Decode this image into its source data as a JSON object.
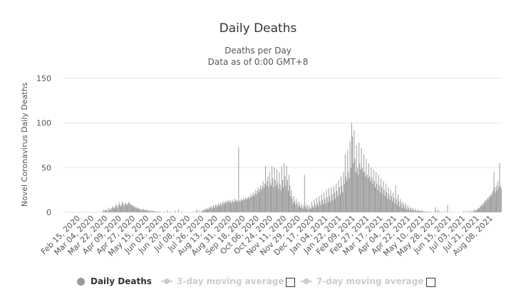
{
  "chart_data": {
    "type": "bar",
    "title": "Daily Deaths",
    "subtitle_lines": [
      "Deaths per Day",
      "Data as of 0:00 GMT+8"
    ],
    "ylabel": "Novel Coronavirus Daily Deaths",
    "xlabel": "",
    "ylim": [
      0,
      150
    ],
    "yticks": [
      0,
      50,
      100,
      150
    ],
    "x_start": "2020-02-15",
    "x_end": "2021-08-26",
    "xtick_labels": [
      "Feb 15, 2020",
      "Mar 04, 2020",
      "Mar 22, 2020",
      "Apr 09, 2020",
      "Apr 27, 2020",
      "May 15, 2020",
      "Jun 02, 2020",
      "Jun 20, 2020",
      "Jul 08, 2020",
      "Jul 26, 2020",
      "Aug 13, 2020",
      "Aug 31, 2020",
      "Sep 18, 2020",
      "Oct 06, 2020",
      "Oct 24, 2020",
      "Nov 11, 2020",
      "Nov 29, 2020",
      "Dec 17, 2020",
      "Jan 04, 2021",
      "Jan 22, 2021",
      "Feb 09, 2021",
      "Feb 27, 2021",
      "Mar 17, 2021",
      "Apr 04, 2021",
      "Apr 22, 2021",
      "May 10, 2021",
      "May 28, 2021",
      "Jun 15, 2021",
      "Jul 03, 2021",
      "Jul 21, 2021",
      "Aug 08, 2021"
    ],
    "bar_color": "#999999",
    "series": [
      {
        "name": "Daily Deaths",
        "color": "#999999"
      },
      {
        "name": "3-day moving average",
        "color": "#cccccc",
        "visible": false
      },
      {
        "name": "7-day moving average",
        "color": "#cccccc",
        "visible": false
      }
    ],
    "values": [
      0,
      0,
      0,
      0,
      0,
      0,
      0,
      0,
      0,
      0,
      0,
      0,
      0,
      0,
      0,
      0,
      0,
      0,
      0,
      0,
      0,
      0,
      0,
      0,
      0,
      0,
      0,
      0,
      0,
      0,
      0,
      0,
      0,
      0,
      0,
      0,
      0,
      0,
      0,
      0,
      0,
      0,
      0,
      0,
      0,
      0,
      0,
      0,
      1,
      0,
      3,
      1,
      3,
      2,
      3,
      1,
      5,
      2,
      4,
      3,
      5,
      7,
      5,
      4,
      6,
      9,
      7,
      5,
      8,
      11,
      8,
      6,
      9,
      12,
      10,
      7,
      9,
      11,
      9,
      8,
      10,
      12,
      10,
      8,
      9,
      7,
      8,
      6,
      7,
      5,
      6,
      4,
      5,
      4,
      3,
      4,
      3,
      2,
      4,
      3,
      2,
      3,
      2,
      3,
      2,
      1,
      2,
      1,
      2,
      1,
      1,
      2,
      1,
      0,
      1,
      1,
      0,
      1,
      0,
      1,
      0,
      0,
      0,
      0,
      1,
      0,
      0,
      0,
      2,
      0,
      0,
      0,
      1,
      0,
      0,
      0,
      0,
      0,
      2,
      0,
      0,
      0,
      3,
      0,
      0,
      0,
      1,
      0,
      0,
      0,
      0,
      0,
      0,
      0,
      0,
      0,
      0,
      0,
      0,
      0,
      1,
      0,
      0,
      0,
      3,
      1,
      0,
      2,
      0,
      0,
      1,
      2,
      1,
      3,
      2,
      4,
      3,
      5,
      3,
      4,
      6,
      5,
      7,
      4,
      6,
      8,
      5,
      7,
      9,
      6,
      8,
      10,
      7,
      9,
      11,
      8,
      10,
      12,
      9,
      11,
      13,
      10,
      12,
      14,
      11,
      13,
      12,
      10,
      14,
      12,
      11,
      15,
      13,
      12,
      14,
      11,
      73,
      13,
      12,
      15,
      14,
      13,
      16,
      14,
      15,
      17,
      14,
      16,
      18,
      15,
      17,
      20,
      17,
      19,
      22,
      18,
      21,
      25,
      20,
      24,
      28,
      22,
      26,
      30,
      25,
      29,
      35,
      27,
      32,
      52,
      30,
      35,
      40,
      28,
      45,
      33,
      30,
      52,
      38,
      28,
      50,
      36,
      30,
      48,
      33,
      26,
      45,
      31,
      25,
      52,
      36,
      28,
      55,
      40,
      30,
      52,
      36,
      24,
      42,
      30,
      18,
      25,
      15,
      10,
      18,
      12,
      8,
      15,
      10,
      6,
      12,
      8,
      5,
      10,
      6,
      4,
      8,
      42,
      7,
      4,
      9,
      6,
      3,
      8,
      5,
      4,
      12,
      7,
      5,
      14,
      9,
      6,
      16,
      10,
      7,
      18,
      12,
      8,
      20,
      14,
      9,
      22,
      15,
      10,
      25,
      17,
      11,
      27,
      18,
      12,
      28,
      20,
      13,
      30,
      22,
      15,
      32,
      24,
      18,
      36,
      28,
      20,
      40,
      30,
      22,
      45,
      32,
      65,
      40,
      35,
      70,
      45,
      38,
      80,
      50,
      100,
      85,
      55,
      92,
      60,
      45,
      75,
      50,
      42,
      78,
      55,
      48,
      72,
      50,
      45,
      65,
      45,
      40,
      60,
      42,
      38,
      55,
      40,
      35,
      50,
      38,
      32,
      48,
      35,
      28,
      45,
      32,
      25,
      42,
      30,
      22,
      38,
      28,
      20,
      35,
      25,
      18,
      32,
      22,
      15,
      28,
      20,
      14,
      25,
      18,
      12,
      22,
      16,
      10,
      30,
      15,
      8,
      20,
      12,
      6,
      15,
      10,
      5,
      12,
      8,
      4,
      10,
      6,
      3,
      8,
      5,
      2,
      6,
      4,
      2,
      5,
      3,
      1,
      4,
      2,
      1,
      3,
      2,
      1,
      2,
      1,
      1,
      2,
      1,
      0,
      1,
      1,
      0,
      1,
      0,
      1,
      0,
      0,
      1,
      0,
      0,
      0,
      1,
      6,
      0,
      1,
      3,
      0,
      1,
      0,
      0,
      1,
      0,
      0,
      0,
      1,
      0,
      0,
      8,
      0,
      0,
      0,
      1,
      0,
      0,
      0,
      0,
      0,
      0,
      0,
      0,
      0,
      0,
      0,
      0,
      0,
      0,
      0,
      2,
      0,
      0,
      1,
      0,
      1,
      0,
      0,
      2,
      0,
      1,
      0,
      2,
      3,
      1,
      2,
      4,
      3,
      5,
      4,
      6,
      8,
      7,
      10,
      9,
      12,
      11,
      14,
      13,
      16,
      15,
      18,
      17,
      20,
      19,
      22,
      24,
      45,
      28,
      22,
      30,
      25,
      35,
      28,
      55,
      30,
      27
    ]
  },
  "legend": {
    "main_label": "Daily Deaths",
    "ma3_label": "3-day moving average",
    "ma7_label": "7-day moving average"
  }
}
